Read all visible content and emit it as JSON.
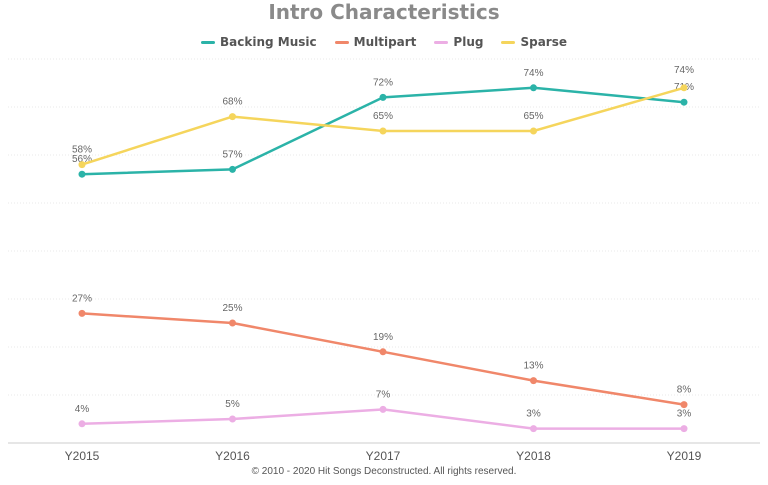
{
  "chart_data": {
    "type": "line",
    "title": "Intro Characteristics",
    "xlabel": "",
    "ylabel": "",
    "categories": [
      "Y2015",
      "Y2016",
      "Y2017",
      "Y2018",
      "Y2019"
    ],
    "ylim": [
      0,
      80
    ],
    "grid": true,
    "legend_position": "top-center",
    "series": [
      {
        "name": "Backing Music",
        "color": "#2bb3a8",
        "values": [
          56,
          57,
          72,
          74,
          71
        ],
        "labels": [
          "56%",
          "57%",
          "72%",
          "74%",
          "71%"
        ]
      },
      {
        "name": "Multipart",
        "color": "#f0876a",
        "values": [
          27,
          25,
          19,
          13,
          8
        ],
        "labels": [
          "27%",
          "25%",
          "19%",
          "13%",
          "8%"
        ]
      },
      {
        "name": "Plug",
        "color": "#ecaee4",
        "values": [
          4,
          5,
          7,
          3,
          3
        ],
        "labels": [
          "4%",
          "5%",
          "7%",
          "3%",
          "3%"
        ]
      },
      {
        "name": "Sparse",
        "color": "#f5d55c",
        "values": [
          58,
          68,
          65,
          65,
          74
        ],
        "labels": [
          "58%",
          "68%",
          "65%",
          "65%",
          "74%"
        ]
      }
    ]
  },
  "footer": "© 2010 - 2020 Hit Songs Deconstructed. All rights reserved."
}
